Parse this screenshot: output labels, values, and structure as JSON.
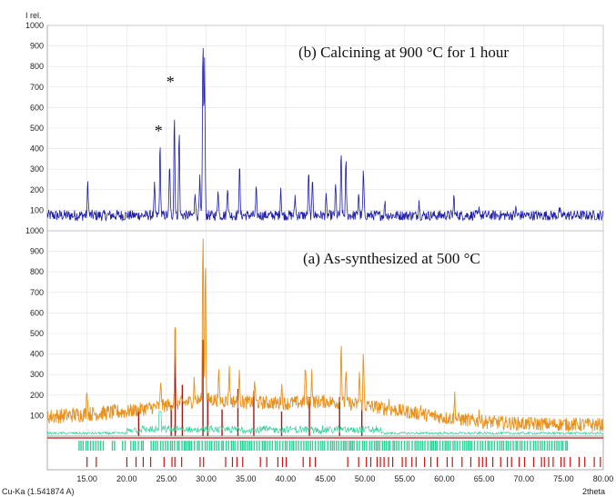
{
  "chart_data": [
    {
      "panel": "top",
      "type": "line",
      "ylabel": "I rel.",
      "ylim": [
        0,
        1000
      ],
      "xlim": [
        10,
        80
      ],
      "yticks": [
        100,
        200,
        300,
        400,
        500,
        600,
        700,
        800,
        900,
        1000
      ],
      "grid": true,
      "annotation": "(b) Calcining  at 900 °C for 1 hour",
      "asterisks": [
        {
          "x": 24.0,
          "y": 460,
          "label": "*"
        },
        {
          "x": 25.5,
          "y": 700,
          "label": "*"
        }
      ],
      "colors": {
        "line": "#1f1fa8"
      },
      "series": [
        {
          "baseline": 75,
          "peaks": [
            {
              "x": 15.1,
              "y": 235
            },
            {
              "x": 23.5,
              "y": 215
            },
            {
              "x": 24.2,
              "y": 410
            },
            {
              "x": 25.4,
              "y": 330
            },
            {
              "x": 26.0,
              "y": 565
            },
            {
              "x": 26.6,
              "y": 480
            },
            {
              "x": 28.6,
              "y": 200
            },
            {
              "x": 29.2,
              "y": 250
            },
            {
              "x": 29.6,
              "y": 935
            },
            {
              "x": 29.8,
              "y": 830
            },
            {
              "x": 31.5,
              "y": 215
            },
            {
              "x": 32.7,
              "y": 230
            },
            {
              "x": 34.2,
              "y": 325
            },
            {
              "x": 36.3,
              "y": 200
            },
            {
              "x": 39.4,
              "y": 215
            },
            {
              "x": 41.2,
              "y": 170
            },
            {
              "x": 42.9,
              "y": 290
            },
            {
              "x": 43.4,
              "y": 255
            },
            {
              "x": 45.1,
              "y": 160
            },
            {
              "x": 46.3,
              "y": 220
            },
            {
              "x": 47.0,
              "y": 370
            },
            {
              "x": 47.6,
              "y": 330
            },
            {
              "x": 49.2,
              "y": 190
            },
            {
              "x": 49.8,
              "y": 290
            },
            {
              "x": 52.5,
              "y": 140
            },
            {
              "x": 56.8,
              "y": 150
            },
            {
              "x": 61.2,
              "y": 165
            },
            {
              "x": 64.4,
              "y": 110
            },
            {
              "x": 69.0,
              "y": 105
            },
            {
              "x": 74.5,
              "y": 100
            }
          ]
        }
      ]
    },
    {
      "panel": "bottom",
      "type": "line",
      "ylim": [
        0,
        1000
      ],
      "xlim": [
        10,
        80
      ],
      "yticks": [
        100,
        200,
        300,
        400,
        500,
        600,
        700,
        800,
        900,
        1000
      ],
      "xticks": [
        "15.00",
        "20.00",
        "25.00",
        "30.00",
        "35.00",
        "40.00",
        "45.00",
        "50.00",
        "55.00",
        "60.00",
        "65.00",
        "70.00",
        "75.00",
        "80.00"
      ],
      "xtick_values": [
        15,
        20,
        25,
        30,
        35,
        40,
        45,
        50,
        55,
        60,
        65,
        70,
        75,
        80
      ],
      "xlabel": "2theta",
      "grid": true,
      "annotation": "(a) As-synthesized at 500 °C",
      "colors": {
        "line": "#e8911c",
        "phase1": "#2fcf9a",
        "phase2": "#c81414"
      },
      "series": [
        {
          "baseline": [
            {
              "x": 10,
              "y": 95
            },
            {
              "x": 20,
              "y": 120
            },
            {
              "x": 25,
              "y": 150
            },
            {
              "x": 30,
              "y": 180
            },
            {
              "x": 35,
              "y": 165
            },
            {
              "x": 40,
              "y": 160
            },
            {
              "x": 45,
              "y": 170
            },
            {
              "x": 50,
              "y": 150
            },
            {
              "x": 55,
              "y": 120
            },
            {
              "x": 60,
              "y": 90
            },
            {
              "x": 65,
              "y": 70
            },
            {
              "x": 70,
              "y": 60
            },
            {
              "x": 80,
              "y": 55
            }
          ],
          "peaks": [
            {
              "x": 15.0,
              "y": 245
            },
            {
              "x": 24.3,
              "y": 270
            },
            {
              "x": 26.1,
              "y": 530
            },
            {
              "x": 28.5,
              "y": 280
            },
            {
              "x": 29.6,
              "y": 990
            },
            {
              "x": 29.9,
              "y": 870
            },
            {
              "x": 31.6,
              "y": 300
            },
            {
              "x": 32.9,
              "y": 340
            },
            {
              "x": 34.2,
              "y": 300
            },
            {
              "x": 36.1,
              "y": 280
            },
            {
              "x": 39.5,
              "y": 250
            },
            {
              "x": 42.5,
              "y": 340
            },
            {
              "x": 43.3,
              "y": 310
            },
            {
              "x": 47.0,
              "y": 455
            },
            {
              "x": 47.6,
              "y": 330
            },
            {
              "x": 49.3,
              "y": 310
            },
            {
              "x": 49.8,
              "y": 390
            },
            {
              "x": 53.0,
              "y": 170
            },
            {
              "x": 57.0,
              "y": 150
            },
            {
              "x": 61.3,
              "y": 200
            },
            {
              "x": 64.4,
              "y": 120
            }
          ]
        }
      ],
      "reference_sticks": [
        {
          "x": 26.1,
          "y": 520
        },
        {
          "x": 29.6,
          "y": 470
        },
        {
          "x": 27.0,
          "y": 250
        },
        {
          "x": 25.6,
          "y": 150
        },
        {
          "x": 30.2,
          "y": 200
        },
        {
          "x": 32.0,
          "y": 130
        },
        {
          "x": 34.0,
          "y": 230
        },
        {
          "x": 36.0,
          "y": 220
        },
        {
          "x": 39.5,
          "y": 120
        },
        {
          "x": 43.0,
          "y": 190
        },
        {
          "x": 46.8,
          "y": 190
        },
        {
          "x": 49.6,
          "y": 140
        },
        {
          "x": 21.5,
          "y": 120
        }
      ]
    }
  ],
  "footer": {
    "radiation": "Cu-Ka (1.541874 A)"
  },
  "phase_markers": {
    "phase1_range": [
      14,
      75.5
    ],
    "phase2_range": [
      15,
      80
    ]
  }
}
